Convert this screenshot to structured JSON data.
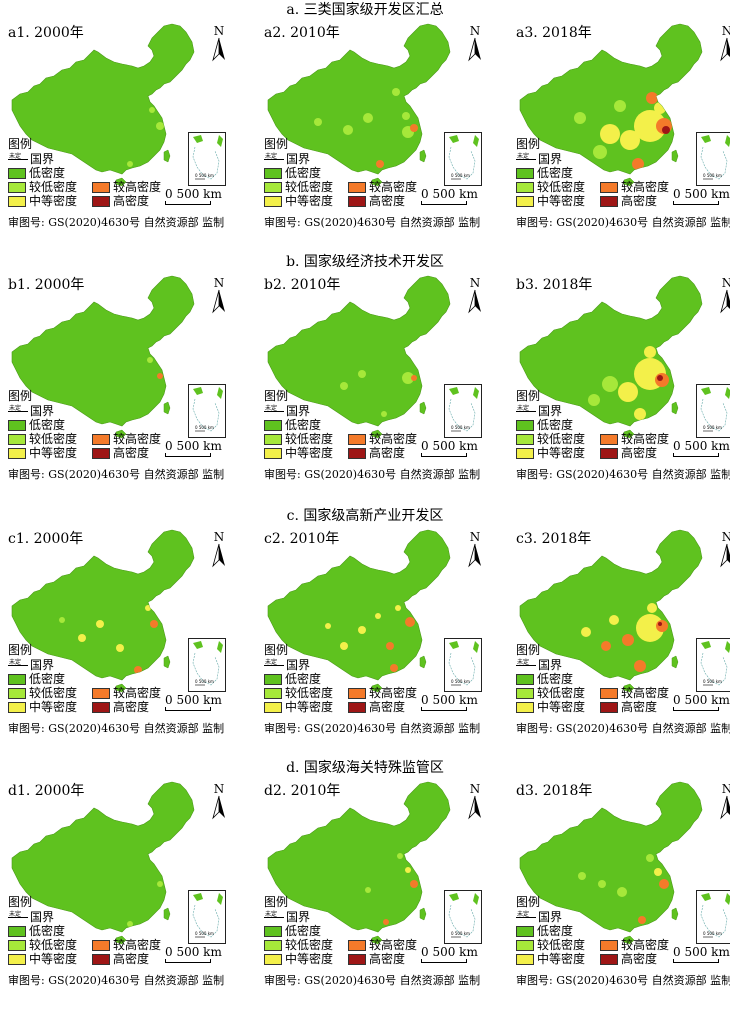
{
  "sections": [
    {
      "title": "a. 三类国家级开发区汇总",
      "panels": [
        "a1. 2000年",
        "a2. 2010年",
        "a3. 2018年"
      ]
    },
    {
      "title": "b. 国家级经济技术开发区",
      "panels": [
        "b1. 2000年",
        "b2. 2010年",
        "b3. 2018年"
      ]
    },
    {
      "title": "c. 国家级高新产业开发区",
      "panels": [
        "c1. 2000年",
        "c2. 2010年",
        "c3. 2018年"
      ]
    },
    {
      "title": "d. 国家级海关特殊监管区",
      "panels": [
        "d1. 2000年",
        "d2. 2010年",
        "d3. 2018年"
      ]
    }
  ],
  "legend": {
    "title": "图例",
    "border_tiny": "未定",
    "border": "国界",
    "classes": [
      {
        "label": "低密度",
        "color": "#5fc21f"
      },
      {
        "label": "较低密度",
        "color": "#a6e83a"
      },
      {
        "label": "中等密度",
        "color": "#f3f04a"
      },
      {
        "label": "较高密度",
        "color": "#f47a2a"
      },
      {
        "label": "高密度",
        "color": "#9e1616"
      }
    ]
  },
  "north_label": "N",
  "scale_label": "0 500 km",
  "review_text": "审图号: GS(2020)4630号 自然资源部 监制"
}
